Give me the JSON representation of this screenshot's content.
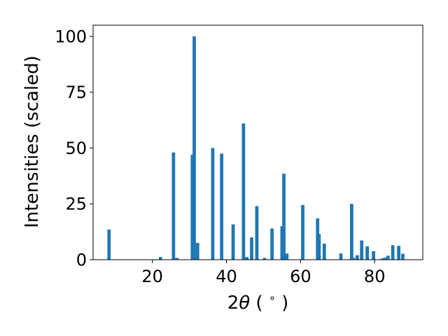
{
  "chart_data": {
    "type": "bar",
    "xlabel_parts": [
      "2",
      "θ",
      " ( ",
      "∘",
      " )"
    ],
    "ylabel": "Intensities (scaled)",
    "xlim": [
      4,
      93
    ],
    "ylim": [
      0,
      105
    ],
    "xticks": [
      20,
      40,
      60,
      80
    ],
    "yticks": [
      0,
      25,
      50,
      75,
      100
    ],
    "grid": false,
    "bar_color": "#1f77b4",
    "bar_width": 0.9,
    "x": [
      8.3,
      22.2,
      25.7,
      26.6,
      30.8,
      31.3,
      32.2,
      36.3,
      38.7,
      41.8,
      44.6,
      45.5,
      46.8,
      48.2,
      50.3,
      52.3,
      55.0,
      55.5,
      56.3,
      60.6,
      64.6,
      65.0,
      66.4,
      70.9,
      73.8,
      74.3,
      75.3,
      76.5,
      78.0,
      79.7,
      82.0,
      82.7,
      83.6,
      84.9,
      86.5,
      87.6
    ],
    "values": [
      13.5,
      1.2,
      48,
      0.8,
      47,
      100,
      7.5,
      50,
      47.5,
      15.8,
      61,
      1.2,
      10,
      24,
      0.8,
      14,
      15,
      38.5,
      2.8,
      24.5,
      18.5,
      11.5,
      7.2,
      2.8,
      25,
      0.8,
      2,
      8.6,
      6,
      3.8,
      0.5,
      0.9,
      1.8,
      6.5,
      6.2,
      2.7
    ]
  }
}
